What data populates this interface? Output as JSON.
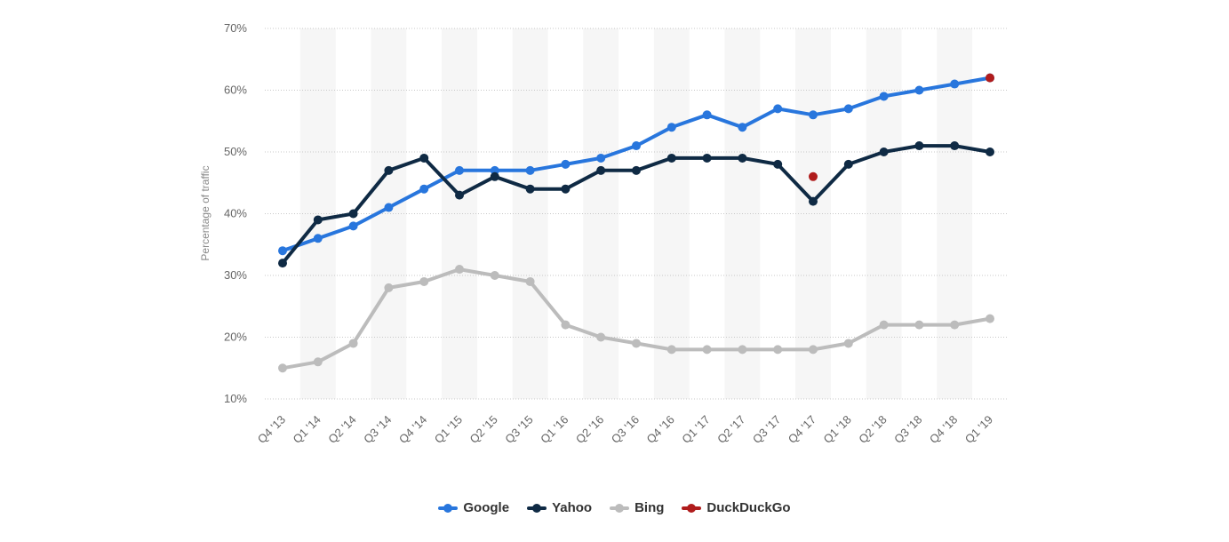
{
  "chart_data": {
    "type": "line",
    "ylabel": "Percentage of traffic",
    "xlabel": "",
    "ylim": [
      10,
      70
    ],
    "yticks": [
      "10%",
      "20%",
      "30%",
      "40%",
      "50%",
      "60%",
      "70%"
    ],
    "grid": true,
    "legend_position": "bottom-center",
    "categories": [
      "Q4 '13",
      "Q1 '14",
      "Q2 '14",
      "Q3 '14",
      "Q4 '14",
      "Q1 '15",
      "Q2 '15",
      "Q3 '15",
      "Q1 '16",
      "Q2 '16",
      "Q3 '16",
      "Q4 '16",
      "Q1 '17",
      "Q2 '17",
      "Q3 '17",
      "Q4 '17",
      "Q1 '18",
      "Q2 '18",
      "Q3 '18",
      "Q4 '18",
      "Q1 '19"
    ],
    "series": [
      {
        "name": "Google",
        "color": "#2876dd",
        "values": [
          34,
          36,
          38,
          41,
          44,
          47,
          47,
          47,
          48,
          49,
          51,
          54,
          56,
          54,
          57,
          56,
          57,
          59,
          60,
          61,
          62
        ]
      },
      {
        "name": "Yahoo",
        "color": "#0f2a44",
        "values": [
          32,
          39,
          40,
          47,
          49,
          43,
          46,
          44,
          44,
          47,
          47,
          49,
          49,
          49,
          48,
          42,
          48,
          50,
          51,
          51,
          50
        ]
      },
      {
        "name": "Bing",
        "color": "#bcbcbc",
        "values": [
          15,
          16,
          19,
          28,
          29,
          31,
          30,
          29,
          22,
          20,
          19,
          18,
          18,
          18,
          18,
          18,
          19,
          22,
          22,
          22,
          23
        ]
      },
      {
        "name": "DuckDuckGo",
        "color": "#b01c1c",
        "values": [
          null,
          null,
          null,
          null,
          null,
          null,
          null,
          null,
          null,
          null,
          null,
          null,
          null,
          null,
          null,
          46,
          null,
          null,
          null,
          null,
          62
        ]
      }
    ]
  }
}
